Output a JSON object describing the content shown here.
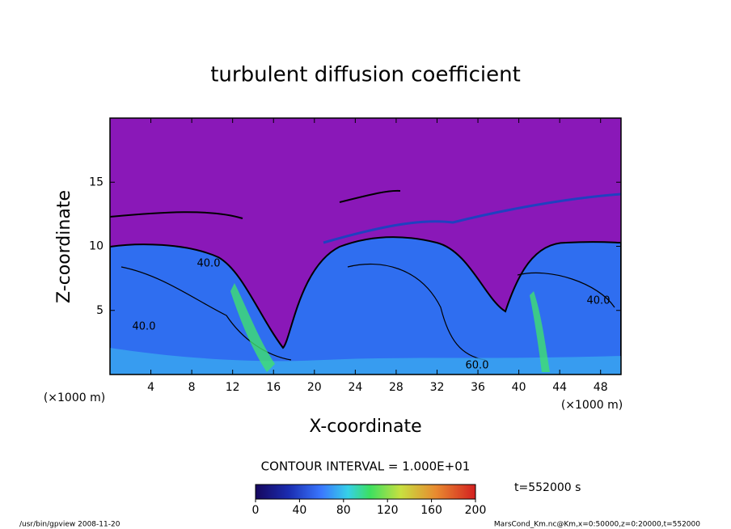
{
  "chart_data": {
    "type": "contour",
    "title": "turbulent diffusion coefficient",
    "x_label": "X-coordinate",
    "y_label": "Z-coordinate",
    "x_unit": "(×1000 m)",
    "y_unit": "(×1000 m)",
    "xlim": [
      0,
      50
    ],
    "xticks": [
      4,
      8,
      12,
      16,
      20,
      24,
      28,
      32,
      36,
      40,
      44,
      48
    ],
    "ylim": [
      0,
      20
    ],
    "yticks": [
      5,
      10,
      15
    ],
    "contour_labels": [
      "40.0",
      "40.0",
      "40.0",
      "60.0"
    ],
    "contour_interval": "CONTOUR INTERVAL = 1.000E+01",
    "time_label": "t=552000 s",
    "colorbar": {
      "lim": [
        0,
        200
      ],
      "ticks": [
        0,
        40,
        80,
        120,
        160,
        200
      ]
    },
    "footer_left": "/usr/bin/gpview   2008-11-20",
    "footer_right": "MarsCond_Km.nc@Km,x=0:50000,z=0:20000,t=552000"
  }
}
